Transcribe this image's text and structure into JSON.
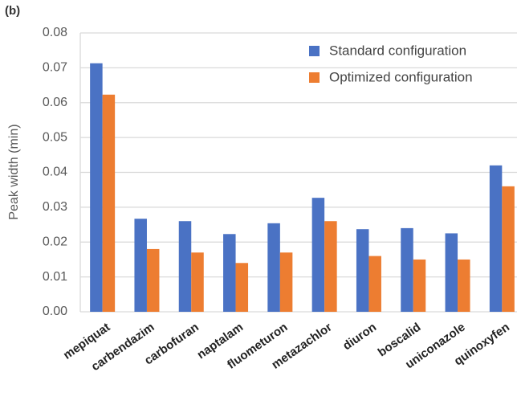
{
  "chart_data": {
    "type": "bar",
    "panel_label": "(b)",
    "y_label": "Peak width (min)",
    "categories": [
      "mepiquat",
      "carbendazim",
      "carbofuran",
      "naptalam",
      "fluometuron",
      "metazachlor",
      "diuron",
      "boscalid",
      "uniconazole",
      "quinoxyfen"
    ],
    "series": [
      {
        "name": "Standard configuration",
        "color": "#4a72c4",
        "values": [
          0.0713,
          0.0267,
          0.026,
          0.0223,
          0.0254,
          0.0327,
          0.0237,
          0.024,
          0.0225,
          0.042
        ]
      },
      {
        "name": "Optimized configuration",
        "color": "#ed7d31",
        "values": [
          0.0623,
          0.018,
          0.017,
          0.014,
          0.017,
          0.026,
          0.016,
          0.015,
          0.015,
          0.036
        ]
      }
    ],
    "ylim": [
      0,
      0.08
    ],
    "yticks": [
      {
        "value": 0,
        "label": "0.00"
      },
      0.01,
      0.02,
      0.03,
      0.04,
      0.05,
      0.06,
      0.07,
      0.08
    ],
    "grid": true,
    "legend": "upper right"
  }
}
